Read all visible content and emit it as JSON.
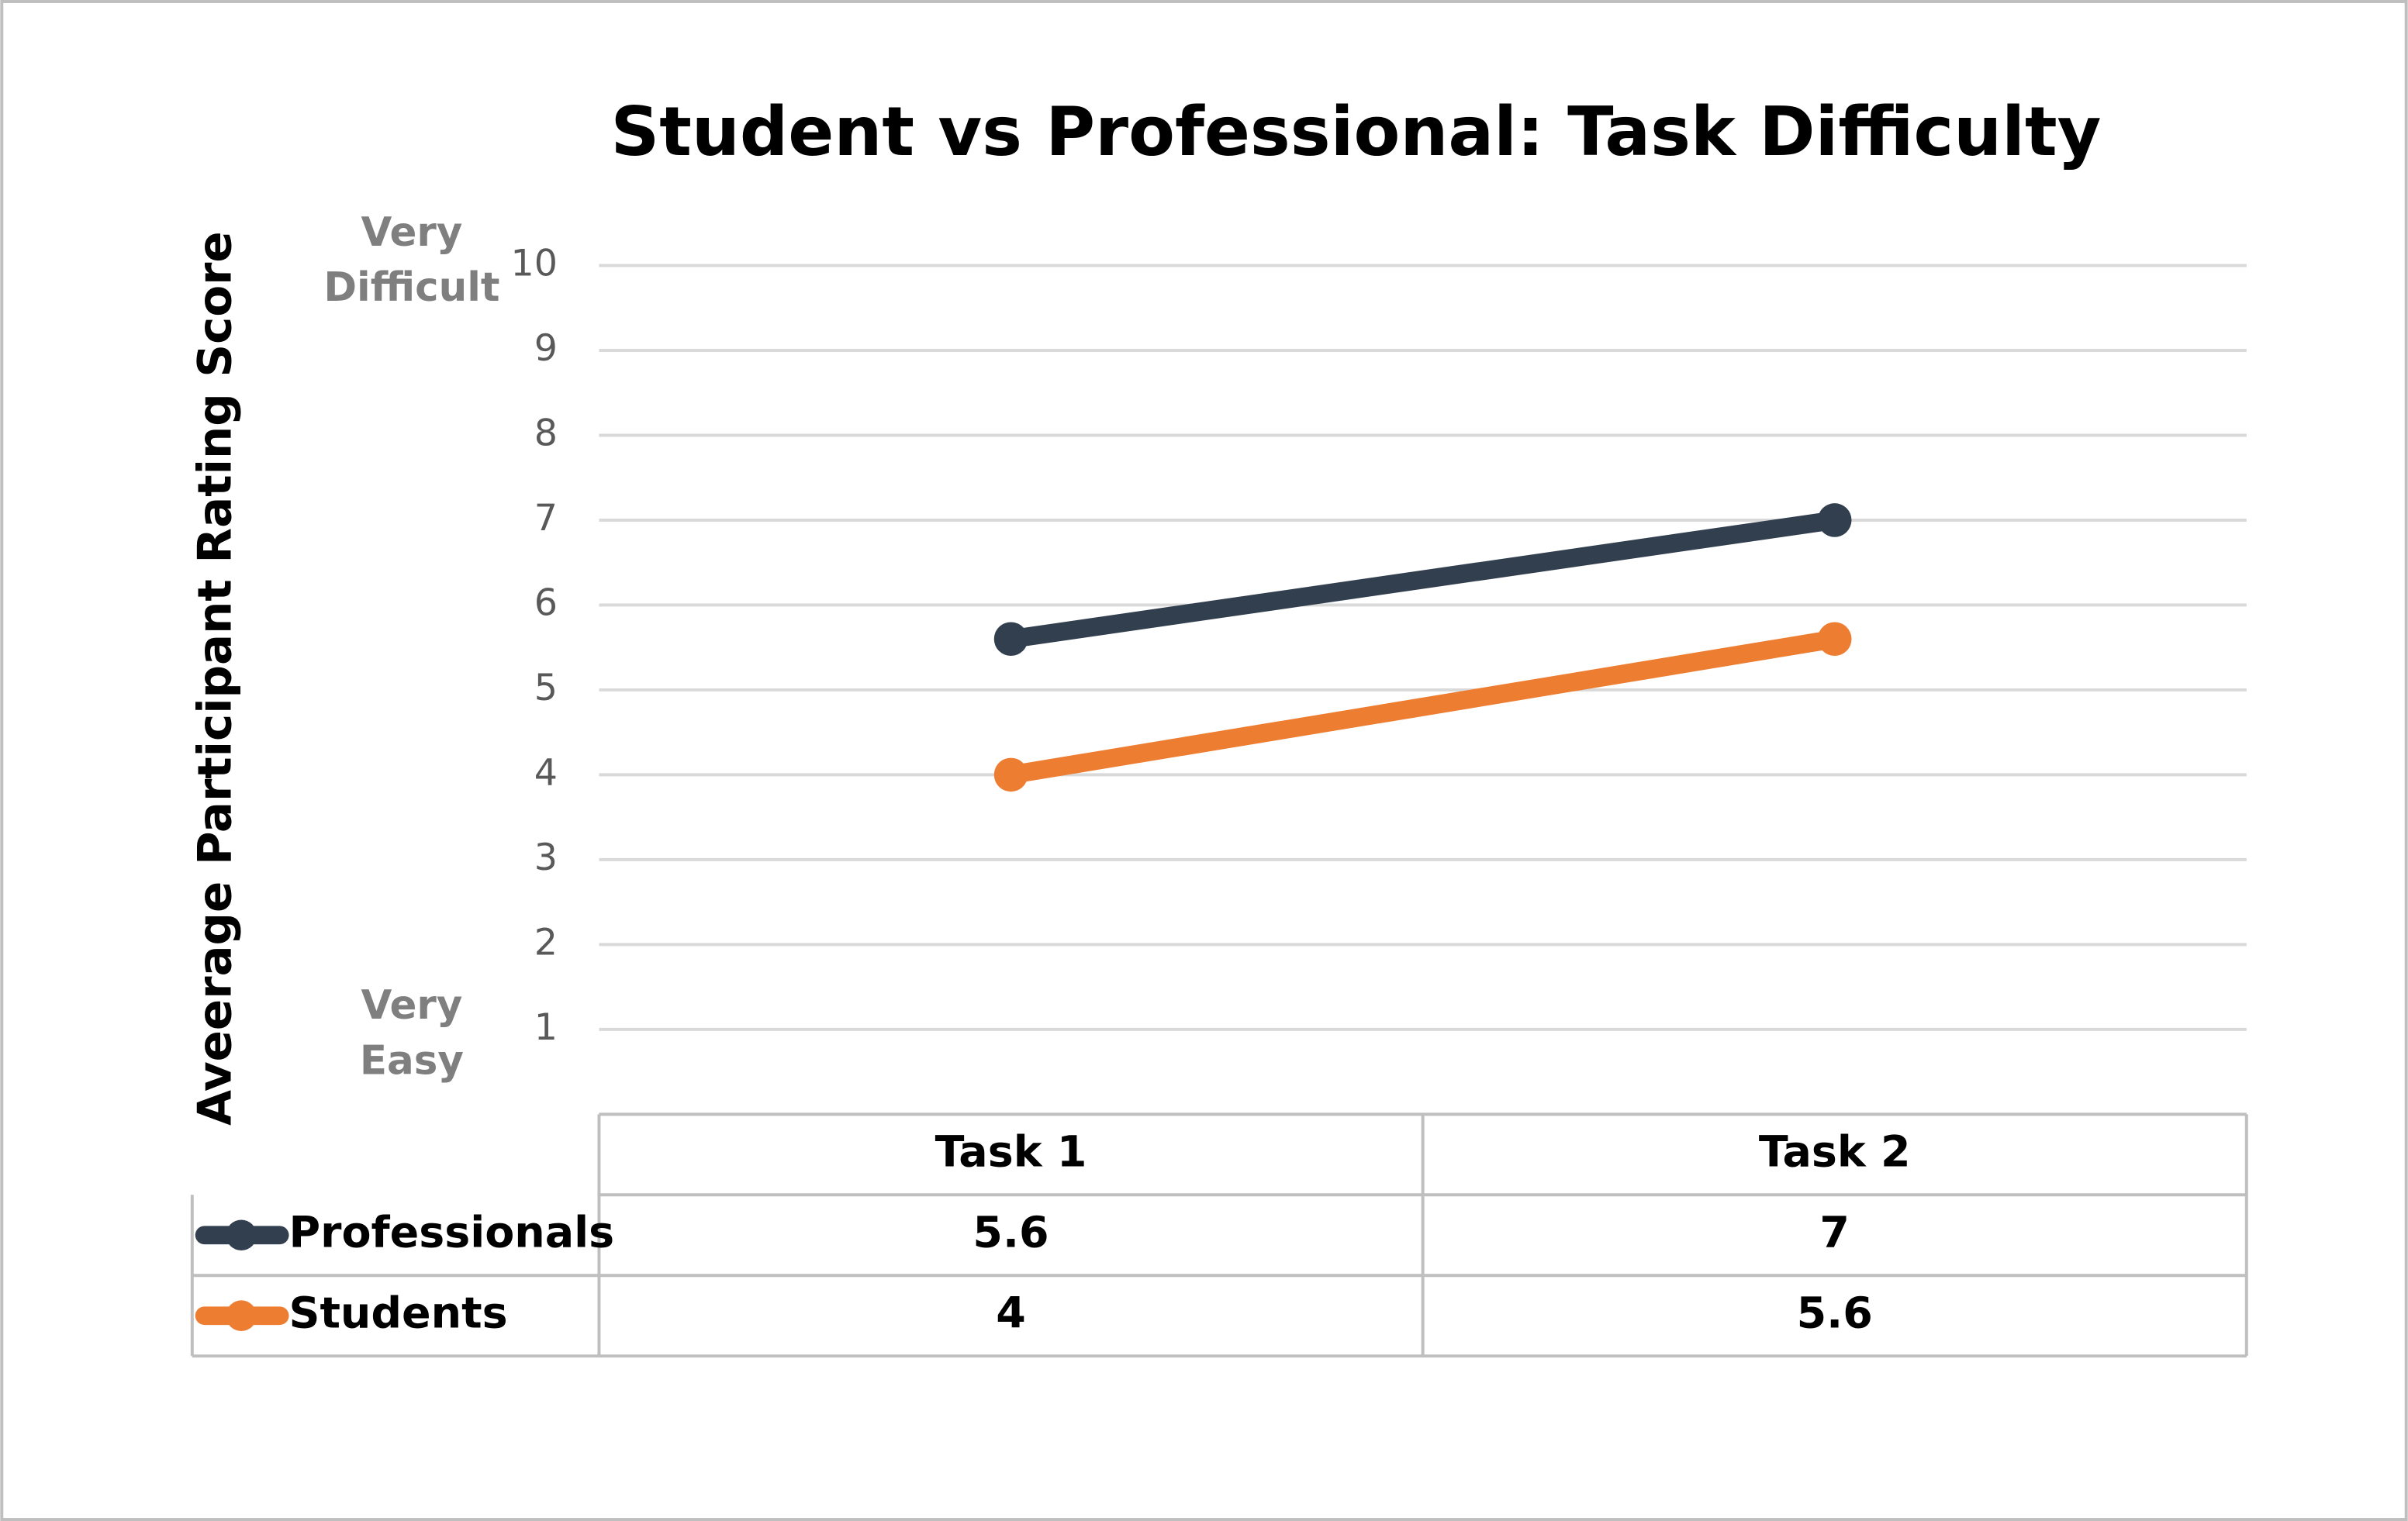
{
  "chart_data": {
    "type": "line",
    "title": "Student vs Professional: Task Difficulty",
    "y_label": "Aveerage Participant Rating Score",
    "annotations": [
      [
        "Very",
        "Difficult"
      ],
      [
        "Very",
        "Easy"
      ]
    ],
    "categories": [
      "Task 1",
      "Task 2"
    ],
    "series": [
      {
        "name": "Professionals",
        "color": "#323f4f",
        "values": [
          5.6,
          7
        ]
      },
      {
        "name": "Students",
        "color": "#ed7d31",
        "values": [
          4,
          5.6
        ]
      }
    ],
    "ylim": [
      0,
      10
    ],
    "yticks": [
      1,
      2,
      3,
      4,
      5,
      6,
      7,
      8,
      9,
      10
    ],
    "grid": true,
    "data_table": true
  }
}
